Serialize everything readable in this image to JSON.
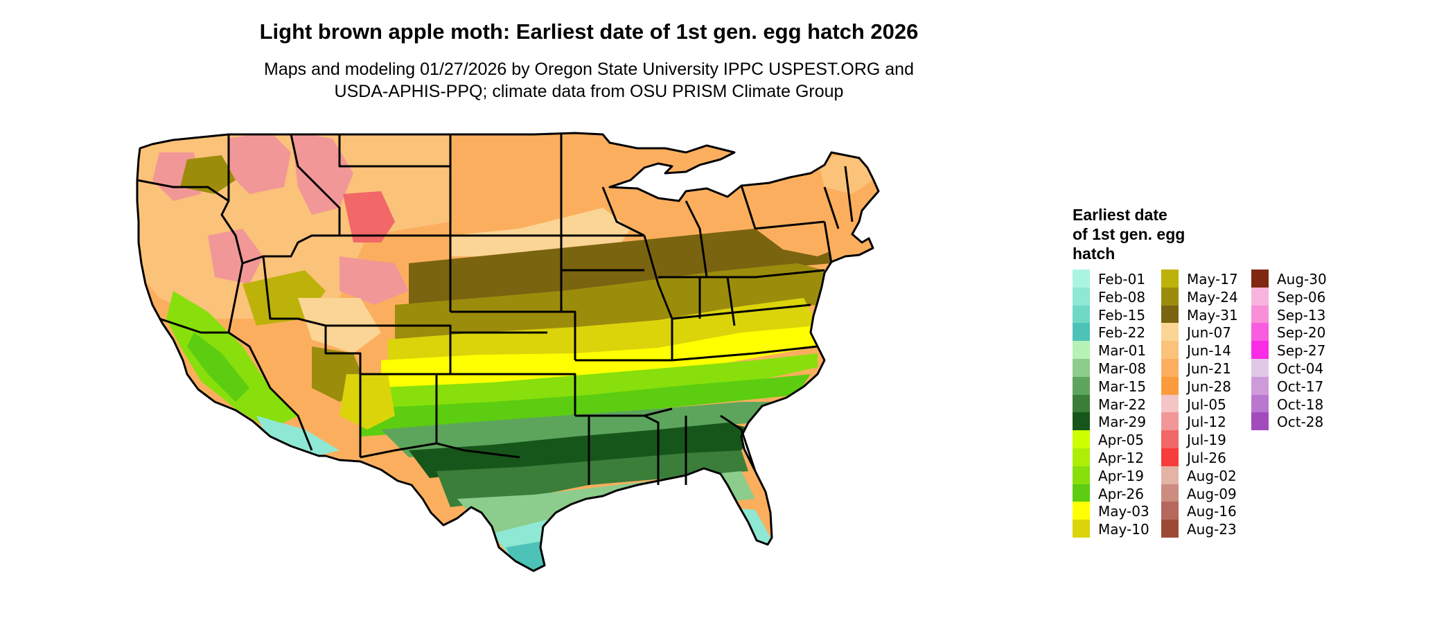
{
  "title": "Light brown apple moth: Earliest date of 1st gen. egg hatch 2026",
  "subtitle_lines": [
    "Maps and modeling 01/27/2026 by Oregon State University IPPC USPEST.ORG and",
    "USDA-APHIS-PPQ; climate data from OSU PRISM Climate Group"
  ],
  "legend": {
    "title_lines": [
      "Earliest date",
      "of 1st gen. egg",
      "hatch"
    ],
    "columns": [
      [
        {
          "label": "Feb-01",
          "color": "#aaf5e1"
        },
        {
          "label": "Feb-08",
          "color": "#8ee8d3"
        },
        {
          "label": "Feb-15",
          "color": "#6fd9c6"
        },
        {
          "label": "Feb-22",
          "color": "#4dc3b7"
        },
        {
          "label": "Mar-01",
          "color": "#b6f1b6"
        },
        {
          "label": "Mar-08",
          "color": "#8ccc8c"
        },
        {
          "label": "Mar-15",
          "color": "#5da55d"
        },
        {
          "label": "Mar-22",
          "color": "#3a7e3a"
        },
        {
          "label": "Mar-29",
          "color": "#17561a"
        },
        {
          "label": "Apr-05",
          "color": "#ccff00"
        },
        {
          "label": "Apr-12",
          "color": "#adee06"
        },
        {
          "label": "Apr-19",
          "color": "#88df0c"
        },
        {
          "label": "Apr-26",
          "color": "#5ccd10"
        },
        {
          "label": "May-03",
          "color": "#ffff00"
        },
        {
          "label": "May-10",
          "color": "#dbd40b"
        }
      ],
      [
        {
          "label": "May-17",
          "color": "#bdb209"
        },
        {
          "label": "May-24",
          "color": "#9c8c0c"
        },
        {
          "label": "May-31",
          "color": "#7b6410"
        },
        {
          "label": "Jun-07",
          "color": "#fbd595"
        },
        {
          "label": "Jun-14",
          "color": "#fbc27a"
        },
        {
          "label": "Jun-21",
          "color": "#fbaf5e"
        },
        {
          "label": "Jun-28",
          "color": "#fb9b3c"
        },
        {
          "label": "Jul-05",
          "color": "#f4c5c5"
        },
        {
          "label": "Jul-12",
          "color": "#f29797"
        },
        {
          "label": "Jul-19",
          "color": "#f26767"
        },
        {
          "label": "Jul-26",
          "color": "#f83b3b"
        },
        {
          "label": "Aug-02",
          "color": "#e3b3a6"
        },
        {
          "label": "Aug-09",
          "color": "#cc8c80"
        },
        {
          "label": "Aug-16",
          "color": "#b5685b"
        },
        {
          "label": "Aug-23",
          "color": "#9d4a36"
        }
      ],
      [
        {
          "label": "Aug-30",
          "color": "#7f2812"
        },
        {
          "label": "Sep-06",
          "color": "#f8b4dc"
        },
        {
          "label": "Sep-13",
          "color": "#f88fd8"
        },
        {
          "label": "Sep-20",
          "color": "#f85ce0"
        },
        {
          "label": "Sep-27",
          "color": "#fa2ae6"
        },
        {
          "label": "Oct-04",
          "color": "#e0c8e8"
        },
        {
          "label": "Oct-17",
          "color": "#cf9ad9"
        },
        {
          "label": "Oct-18",
          "color": "#bb77cf"
        },
        {
          "label": "Oct-28",
          "color": "#a24bbd"
        }
      ]
    ]
  },
  "map_colors": {
    "north": "#fbaf5e",
    "north_light": "#fbc27a",
    "plains": "#fbd595",
    "mountain": "#f29797",
    "mountain_high": "#f26767",
    "olive_dark": "#7b6410",
    "olive": "#9c8c0c",
    "olive_light": "#bdb209",
    "khaki": "#dbd40b",
    "yellow": "#ffff00",
    "green_bright": "#88df0c",
    "green": "#5ccd10",
    "green_dark": "#17561a",
    "green_mid": "#3a7e3a",
    "green_soft": "#5da55d",
    "green_pale": "#8ccc8c",
    "teal": "#8ee8d3",
    "teal_dark": "#4dc3b7",
    "border": "#000000"
  }
}
